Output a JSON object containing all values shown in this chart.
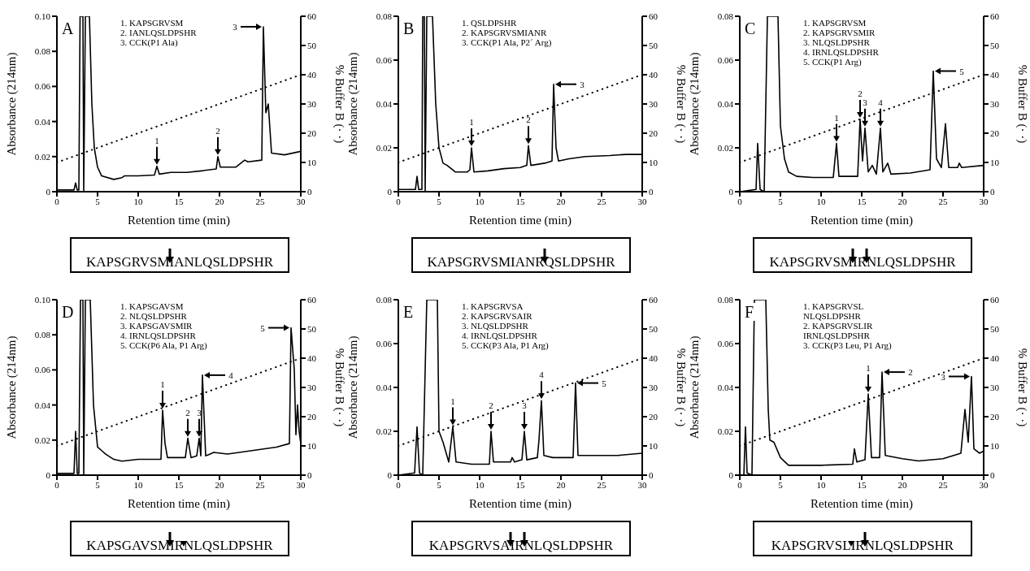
{
  "chart_data": [
    {
      "type": "line",
      "title": "A",
      "xlabel": "Retention time (min)",
      "ylabel": "Absorbance (214nm)",
      "y2label": "% Buffer B (· ·)",
      "xlim": [
        0,
        30
      ],
      "xticks": [
        0,
        5,
        10,
        15,
        20,
        25,
        30
      ],
      "ylim": [
        0,
        0.1
      ],
      "yticks": [
        0,
        0.02,
        0.04,
        0.06,
        0.08,
        {
          "value": 0.1,
          "label": "0.10"
        }
      ],
      "y2lim": [
        0,
        60
      ],
      "y2ticks": [
        0,
        10,
        20,
        30,
        40,
        50,
        60
      ],
      "series": [
        {
          "color": "#000000",
          "line_style": "solid",
          "x": [
            0,
            2.1,
            2.3,
            2.5,
            2.7,
            2.85,
            3.2,
            3.3,
            3.5,
            4.0,
            4.3,
            4.6,
            5,
            5.5,
            7,
            8,
            8.3,
            10,
            12,
            12.3,
            12.6,
            14,
            16,
            18,
            19.6,
            19.8,
            20.1,
            22,
            23.1,
            23.5,
            25.2,
            25.4,
            25.7,
            26,
            26.4,
            28,
            30
          ],
          "values": [
            0.001,
            0.001,
            0.005,
            0.001,
            0.001,
            0.1,
            0.1,
            0,
            0.1,
            0.1,
            0.05,
            0.025,
            0.014,
            0.009,
            0.007,
            0.008,
            0.009,
            0.009,
            0.0095,
            0.0145,
            0.01,
            0.011,
            0.011,
            0.012,
            0.013,
            0.02,
            0.014,
            0.014,
            0.018,
            0.017,
            0.018,
            0.094,
            0.045,
            0.05,
            0.022,
            0.021,
            0.023
          ]
        },
        {
          "color": "#000000",
          "line_style": "dotted",
          "axis": "y2",
          "x": [
            0,
            30
          ],
          "values": [
            10,
            40
          ]
        }
      ],
      "annotations": [
        "1. KAPSGRVSM",
        "2. IANLQSLDPSHR",
        "3. CCK(P1 Ala)",
        {
          "text": "1",
          "x": 12.3,
          "y": 0.0145
        },
        {
          "text": "2",
          "x": 19.8,
          "y": 0.02
        },
        {
          "text": "3",
          "x": 25.4,
          "y": 0.094
        },
        "KAPSGRVSMIANLQSLDPSHR"
      ]
    },
    {
      "type": "line",
      "title": "B",
      "xlabel": "Retention time (min)",
      "ylabel": "Absorbance (214nm)",
      "y2label": "% Buffer B (· ·)",
      "xlim": [
        0,
        30
      ],
      "xticks": [
        0,
        5,
        10,
        15,
        20,
        25,
        30
      ],
      "ylim": [
        0,
        0.08
      ],
      "yticks": [
        0,
        0.02,
        0.04,
        0.06,
        0.08
      ],
      "y2lim": [
        0,
        60
      ],
      "y2ticks": [
        0,
        10,
        20,
        30,
        40,
        50,
        60
      ],
      "series": [
        {
          "color": "#000000",
          "line_style": "solid",
          "x": [
            0,
            2.1,
            2.3,
            2.5,
            2.9,
            3.0,
            3.2,
            3.3,
            3.5,
            4.2,
            4.6,
            5,
            5.5,
            6,
            7,
            8.5,
            8.8,
            9.0,
            9.3,
            11,
            13,
            15,
            15.8,
            16.0,
            16.3,
            18,
            18.9,
            19.1,
            19.4,
            19.7,
            21,
            23,
            26,
            28,
            30
          ],
          "values": [
            0.001,
            0.001,
            0.007,
            0.001,
            0.001,
            0.08,
            0.08,
            0,
            0.08,
            0.08,
            0.04,
            0.02,
            0.013,
            0.012,
            0.009,
            0.009,
            0.01,
            0.02,
            0.009,
            0.0095,
            0.0105,
            0.011,
            0.012,
            0.021,
            0.012,
            0.013,
            0.014,
            0.049,
            0.02,
            0.014,
            0.015,
            0.016,
            0.0165,
            0.017,
            0.017
          ]
        },
        {
          "color": "#000000",
          "line_style": "dotted",
          "axis": "y2",
          "x": [
            0,
            30
          ],
          "values": [
            10,
            40
          ]
        }
      ],
      "annotations": [
        "1. QSLDPSHR",
        "2. KAPSGRVSMIANR",
        "3. CCK(P1 Ala, P2´ Arg)",
        {
          "text": "1",
          "x": 9.0,
          "y": 0.02
        },
        {
          "text": "2",
          "x": 16.0,
          "y": 0.021
        },
        {
          "text": "3",
          "x": 19.1,
          "y": 0.049
        },
        "KAPSGRVSMIANRQSLDPSHR"
      ]
    },
    {
      "type": "line",
      "title": "C",
      "xlabel": "Retention time (min)",
      "ylabel": "Absorbance (214nm)",
      "y2label": "% Buffer B (· ·)",
      "xlim": [
        0,
        30
      ],
      "xticks": [
        0,
        5,
        10,
        15,
        20,
        25,
        30
      ],
      "ylim": [
        0,
        0.08
      ],
      "yticks": [
        0,
        0.02,
        0.04,
        0.06,
        0.08
      ],
      "y2lim": [
        0,
        60
      ],
      "y2ticks": [
        0,
        10,
        20,
        30,
        40,
        50,
        60
      ],
      "series": [
        {
          "color": "#000000",
          "line_style": "solid",
          "x": [
            0,
            2.0,
            2.2,
            2.5,
            3.0,
            3.4,
            4.7,
            5,
            5.5,
            6,
            7,
            9,
            11.5,
            11.9,
            12.2,
            14.5,
            14.8,
            15.1,
            15.4,
            15.8,
            16.3,
            16.8,
            17.3,
            17.6,
            18.2,
            18.6,
            21,
            23.4,
            23.8,
            24.2,
            24.8,
            25.3,
            25.7,
            26.8,
            27,
            27.3,
            30
          ],
          "values": [
            0,
            0.001,
            0.022,
            0.001,
            0,
            0.08,
            0.08,
            0.03,
            0.015,
            0.009,
            0.007,
            0.0065,
            0.0065,
            0.022,
            0.007,
            0.007,
            0.033,
            0.014,
            0.029,
            0.009,
            0.012,
            0.008,
            0.029,
            0.009,
            0.013,
            0.008,
            0.0085,
            0.01,
            0.055,
            0.015,
            0.011,
            0.031,
            0.011,
            0.011,
            0.013,
            0.011,
            0.012
          ]
        },
        {
          "color": "#000000",
          "line_style": "dotted",
          "axis": "y2",
          "x": [
            0,
            30
          ],
          "values": [
            10,
            40
          ]
        }
      ],
      "annotations": [
        "1. KAPSGRVSM",
        "2. KAPSGRVSMIR",
        "3. NLQSLDPSHR",
        "4. IRNLQSLDPSHR",
        "5. CCK(P1 Arg)",
        {
          "text": "1",
          "x": 11.9,
          "y": 0.022
        },
        {
          "text": "2",
          "x": 14.8,
          "y": 0.033
        },
        {
          "text": "3",
          "x": 15.4,
          "y": 0.029
        },
        {
          "text": "4",
          "x": 17.3,
          "y": 0.029
        },
        {
          "text": "5",
          "x": 23.8,
          "y": 0.055
        },
        "KAPSGRVSMIRNLQSLDPSHR"
      ]
    },
    {
      "type": "line",
      "title": "D",
      "xlabel": "Retention time (min)",
      "ylabel": "Absorbance (214nm)",
      "y2label": "% Buffer B (· ·)",
      "xlim": [
        0,
        30
      ],
      "xticks": [
        0,
        5,
        10,
        15,
        20,
        25,
        30
      ],
      "ylim": [
        0,
        0.1
      ],
      "yticks": [
        0,
        0.02,
        0.04,
        0.06,
        0.08,
        {
          "value": 0.1,
          "label": "0.10"
        }
      ],
      "y2lim": [
        0,
        60
      ],
      "y2ticks": [
        0,
        10,
        20,
        30,
        40,
        50,
        60
      ],
      "series": [
        {
          "color": "#000000",
          "line_style": "solid",
          "x": [
            0,
            2.1,
            2.3,
            2.5,
            2.7,
            2.9,
            3.2,
            3.3,
            3.5,
            4.1,
            4.5,
            5,
            5.5,
            6,
            7,
            8,
            10,
            12.8,
            13.0,
            13.3,
            13.6,
            15.8,
            16.1,
            16.5,
            17.2,
            17.5,
            17.7,
            17.9,
            18.3,
            19.3,
            21,
            24,
            27,
            28.6,
            28.8,
            29.2,
            29.4,
            29.6,
            29.8,
            30
          ],
          "values": [
            0.001,
            0.001,
            0.025,
            0.001,
            0.001,
            0.1,
            0.1,
            0,
            0.1,
            0.1,
            0.04,
            0.016,
            0.014,
            0.012,
            0.009,
            0.008,
            0.009,
            0.009,
            0.037,
            0.018,
            0.01,
            0.01,
            0.021,
            0.01,
            0.011,
            0.021,
            0.011,
            0.057,
            0.011,
            0.013,
            0.012,
            0.014,
            0.016,
            0.018,
            0.084,
            0.06,
            0.023,
            0.04,
            0.025,
            0.018
          ]
        },
        {
          "color": "#000000",
          "line_style": "dotted",
          "axis": "y2",
          "x": [
            0,
            30
          ],
          "values": [
            10,
            40
          ]
        }
      ],
      "annotations": [
        "1. KAPSGAVSM",
        "2. NLQSLDPSHR",
        "3. KAPSGAVSMIR",
        "4. IRNLQSLDPSHR",
        "5. CCK(P6 Ala, P1 Arg)",
        {
          "text": "1",
          "x": 13.0,
          "y": 0.037
        },
        {
          "text": "2",
          "x": 16.1,
          "y": 0.021
        },
        {
          "text": "3",
          "x": 17.5,
          "y": 0.021
        },
        {
          "text": "4",
          "x": 17.9,
          "y": 0.057
        },
        {
          "text": "5",
          "x": 28.8,
          "y": 0.084
        },
        "KAPSGAVSMIRNLQSLDPSHR"
      ]
    },
    {
      "type": "line",
      "title": "E",
      "xlabel": "Retention time (min)",
      "ylabel": "Absorbance (214nm)",
      "y2label": "% Buffer B (· ·)",
      "xlim": [
        0,
        30
      ],
      "xticks": [
        0,
        5,
        10,
        15,
        20,
        25,
        30
      ],
      "ylim": [
        0,
        0.08
      ],
      "yticks": [
        0,
        0.02,
        0.04,
        0.06,
        0.08
      ],
      "y2lim": [
        0,
        60
      ],
      "y2ticks": [
        0,
        10,
        20,
        30,
        40,
        50,
        60
      ],
      "series": [
        {
          "color": "#000000",
          "line_style": "solid",
          "x": [
            0,
            2.0,
            2.3,
            2.6,
            3.0,
            3.5,
            4.8,
            5.0,
            5.5,
            6.2,
            6.7,
            7.1,
            9,
            11.2,
            11.4,
            11.7,
            13.8,
            14.0,
            14.3,
            15.2,
            15.5,
            15.8,
            17.1,
            17.3,
            17.6,
            17.9,
            19,
            21.5,
            21.8,
            22.1,
            23.5,
            25,
            27,
            30
          ],
          "values": [
            0,
            0.001,
            0.022,
            0.001,
            0,
            0.08,
            0.08,
            0.02,
            0.015,
            0.006,
            0.022,
            0.006,
            0.005,
            0.005,
            0.02,
            0.006,
            0.006,
            0.008,
            0.006,
            0.007,
            0.02,
            0.007,
            0.008,
            0.016,
            0.034,
            0.009,
            0.008,
            0.008,
            0.042,
            0.009,
            0.009,
            0.009,
            0.009,
            0.01
          ]
        },
        {
          "color": "#000000",
          "line_style": "dotted",
          "axis": "y2",
          "x": [
            0,
            30
          ],
          "values": [
            10,
            40
          ]
        }
      ],
      "annotations": [
        "1. KAPSGRVSA",
        "2. KAPSGRVSAIR",
        "3. NLQSLDPSHR",
        "4. IRNLQSLDPSHR",
        "5. CCK(P3 Ala, P1 Arg)",
        {
          "text": "1",
          "x": 6.7,
          "y": 0.022
        },
        {
          "text": "2",
          "x": 11.4,
          "y": 0.02
        },
        {
          "text": "3",
          "x": 15.5,
          "y": 0.02
        },
        {
          "text": "4",
          "x": 17.6,
          "y": 0.034
        },
        {
          "text": "5",
          "x": 21.8,
          "y": 0.042
        },
        "KAPSGRVSAIRNLQSLDPSHR"
      ]
    },
    {
      "type": "line",
      "title": "F",
      "xlabel": "Retention time (min)",
      "ylabel": "Absorbance (214nm)",
      "y2label": "% Buffer B (· ·)",
      "xlim": [
        0,
        30
      ],
      "xticks": [
        0,
        5,
        10,
        15,
        20,
        25,
        30
      ],
      "ylim": [
        0,
        0.08
      ],
      "yticks": [
        0,
        0.02,
        0.04,
        0.06,
        0.08
      ],
      "y2lim": [
        0,
        60
      ],
      "y2ticks": [
        0,
        10,
        20,
        30,
        40,
        50,
        60
      ],
      "series": [
        {
          "color": "#000000",
          "line_style": "solid",
          "x": [
            0,
            0.5,
            0.7,
            0.9,
            1.5,
            1.8,
            3.2,
            3.5,
            3.7,
            4.2,
            5,
            6,
            10,
            13.9,
            14.1,
            14.4,
            15.4,
            15.8,
            16.2,
            17.2,
            17.5,
            17.9,
            20,
            22,
            25,
            27.2,
            27.7,
            28.1,
            28.5,
            28.8,
            29.5,
            30
          ],
          "values": [
            0,
            0,
            0.022,
            0.001,
            0,
            0.08,
            0.08,
            0.03,
            0.016,
            0.015,
            0.008,
            0.0045,
            0.0045,
            0.005,
            0.012,
            0.006,
            0.007,
            0.037,
            0.008,
            0.008,
            0.047,
            0.009,
            0.0075,
            0.0065,
            0.0075,
            0.01,
            0.03,
            0.015,
            0.045,
            0.012,
            0.01,
            0.011
          ]
        },
        {
          "color": "#000000",
          "line_style": "dotted",
          "axis": "y2",
          "x": [
            0,
            30
          ],
          "values": [
            10,
            40
          ]
        }
      ],
      "annotations": [
        "1. KAPSGRVSL",
        "NLQSLDPSHR",
        "2. KAPSGRVSLIR",
        "IRNLQSLDPSHR",
        "3. CCK(P3 Leu, P1 Arg)",
        {
          "text": "1",
          "x": 15.8,
          "y": 0.037
        },
        {
          "text": "2",
          "x": 17.5,
          "y": 0.047
        },
        {
          "text": "3",
          "x": 28.5,
          "y": 0.045
        },
        "KAPSGRVSLIRNLQSLDPSHR"
      ]
    }
  ]
}
